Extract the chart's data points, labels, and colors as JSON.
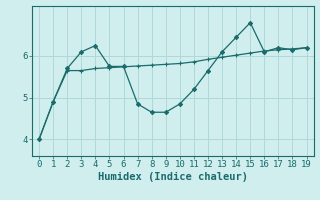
{
  "x": [
    0,
    1,
    2,
    3,
    4,
    5,
    6,
    7,
    8,
    9,
    10,
    11,
    12,
    13,
    14,
    15,
    16,
    17,
    18,
    19
  ],
  "line_volatile": [
    4.0,
    4.9,
    5.7,
    6.1,
    6.25,
    5.75,
    5.75,
    4.85,
    4.65,
    4.65,
    4.85,
    5.2,
    5.65,
    6.1,
    6.45,
    6.8,
    6.1,
    6.2,
    6.15,
    6.2
  ],
  "line_smooth": [
    4.0,
    4.9,
    5.65,
    5.65,
    5.7,
    5.72,
    5.74,
    5.76,
    5.78,
    5.8,
    5.82,
    5.86,
    5.92,
    5.97,
    6.02,
    6.07,
    6.12,
    6.15,
    6.17,
    6.2
  ],
  "color": "#1a6b6b",
  "bg_color": "#d0eeee",
  "grid_color": "#b0d8d8",
  "xlabel": "Humidex (Indice chaleur)",
  "ylim": [
    3.6,
    7.2
  ],
  "xlim": [
    -0.5,
    19.5
  ],
  "yticks": [
    4,
    5,
    6
  ],
  "xticks": [
    0,
    1,
    2,
    3,
    4,
    5,
    6,
    7,
    8,
    9,
    10,
    11,
    12,
    13,
    14,
    15,
    16,
    17,
    18,
    19
  ],
  "label_fontsize": 7.5,
  "tick_fontsize": 6.5
}
